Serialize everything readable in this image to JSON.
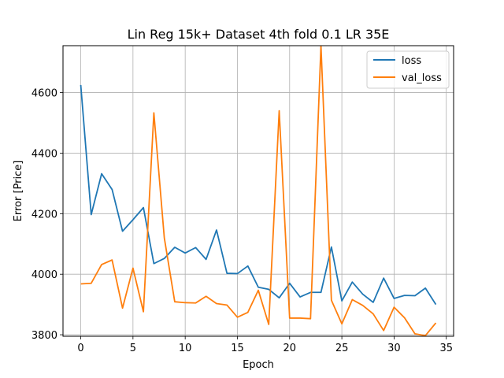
{
  "chart_data": {
    "type": "line",
    "title": "Lin Reg 15k+ Dataset 4th fold 0.1 LR 35E",
    "xlabel": "Epoch",
    "ylabel": "Error [Price]",
    "xlim": [
      -1.7,
      35.7
    ],
    "ylim": [
      3795,
      4755
    ],
    "xticks": [
      0,
      5,
      10,
      15,
      20,
      25,
      30,
      35
    ],
    "yticks": [
      3800,
      4000,
      4200,
      4400,
      4600
    ],
    "grid": true,
    "legend": "top-right",
    "x": [
      0,
      1,
      2,
      3,
      4,
      5,
      6,
      7,
      8,
      9,
      10,
      11,
      12,
      13,
      14,
      15,
      16,
      17,
      18,
      19,
      20,
      21,
      22,
      23,
      24,
      25,
      26,
      27,
      28,
      29,
      30,
      31,
      32,
      33,
      34
    ],
    "series": [
      {
        "name": "loss",
        "color": "#1f77b4",
        "values": [
          4625,
          4197,
          4332,
          4280,
          4142,
          4180,
          4220,
          4035,
          4052,
          4089,
          4070,
          4088,
          4049,
          4146,
          4003,
          4002,
          4027,
          3957,
          3950,
          3922,
          3970,
          3925,
          3940,
          3940,
          4090,
          3912,
          3974,
          3934,
          3907,
          3987,
          3920,
          3930,
          3929,
          3954,
          3900
        ]
      },
      {
        "name": "val_loss",
        "color": "#ff7f0e",
        "values": [
          3968,
          3970,
          4032,
          4047,
          3888,
          4020,
          3876,
          4533,
          4120,
          3909,
          3906,
          3905,
          3927,
          3903,
          3898,
          3858,
          3874,
          3947,
          3834,
          4540,
          3855,
          3855,
          3853,
          4755,
          3914,
          3836,
          3916,
          3897,
          3869,
          3814,
          3891,
          3856,
          3803,
          3797,
          3839
        ]
      }
    ]
  }
}
